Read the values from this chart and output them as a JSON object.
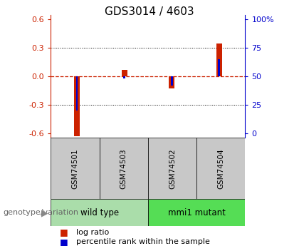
{
  "title": "GDS3014 / 4603",
  "samples": [
    "GSM74501",
    "GSM74503",
    "GSM74502",
    "GSM74504"
  ],
  "log_ratios": [
    -0.63,
    0.07,
    -0.13,
    0.35
  ],
  "percentile_ranks": [
    20,
    48,
    42,
    65
  ],
  "groups": [
    {
      "label": "wild type",
      "samples": [
        0,
        1
      ],
      "color": "#aaddaa"
    },
    {
      "label": "mmi1 mutant",
      "samples": [
        2,
        3
      ],
      "color": "#55dd55"
    }
  ],
  "ylim": [
    -0.65,
    0.65
  ],
  "yticks_left": [
    -0.6,
    -0.3,
    0.0,
    0.3,
    0.6
  ],
  "yticks_right": [
    0,
    25,
    50,
    75,
    100
  ],
  "log_ratio_bar_width": 0.12,
  "percentile_bar_width": 0.04,
  "log_ratio_color": "#cc2200",
  "percentile_color": "#0000cc",
  "zero_line_color": "#cc2200",
  "grid_color": "#000000",
  "bg_color": "#ffffff",
  "plot_bg": "#ffffff",
  "legend_items": [
    {
      "label": "log ratio",
      "color": "#cc2200"
    },
    {
      "label": "percentile rank within the sample",
      "color": "#0000cc"
    }
  ],
  "genotype_label": "genotype/variation",
  "sample_box_color": "#c8c8c8",
  "title_fontsize": 11,
  "tick_fontsize": 8,
  "label_fontsize": 8,
  "sample_fontsize": 7.5,
  "group_fontsize": 8.5,
  "legend_fontsize": 8
}
